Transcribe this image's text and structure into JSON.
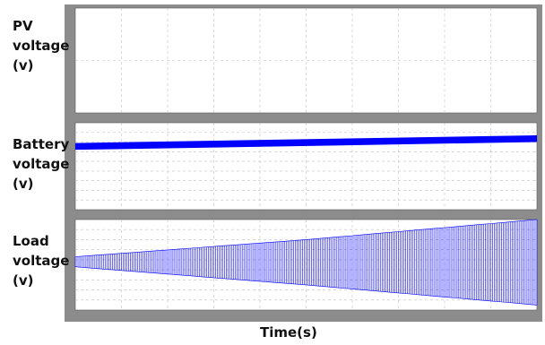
{
  "labels": {
    "pv": "PV\nvoltage\n(v)",
    "battery": "Battery\nvoltage\n(v)",
    "load": "Load\nvoltage\n(v)",
    "xlabel": "Time(s)"
  },
  "chart_data": [
    {
      "type": "line",
      "title": "",
      "ylabel": "PV voltage (v)",
      "xlabel": "Time(s)",
      "x_range": [
        0,
        1
      ],
      "grid": true,
      "series": []
    },
    {
      "type": "line",
      "title": "",
      "ylabel": "Battery voltage (v)",
      "xlabel": "Time(s)",
      "x_range": [
        0,
        1
      ],
      "ylim": [
        0,
        9
      ],
      "grid": true,
      "series": [
        {
          "x": [
            0,
            1
          ],
          "center": [
            6.55,
            7.35
          ],
          "band": 0.7,
          "color": "#0000ff"
        }
      ]
    },
    {
      "type": "line",
      "title": "",
      "ylabel": "Load voltage (v)",
      "xlabel": "Time(s)",
      "x_range": [
        0,
        1
      ],
      "ylim": [
        0,
        9
      ],
      "grid": true,
      "series": [
        {
          "x": [
            0,
            0.5,
            1
          ],
          "upper": [
            5.3,
            7.0,
            9.0
          ],
          "lower": [
            4.3,
            2.5,
            0.5
          ],
          "color": "#0000ff"
        }
      ]
    }
  ],
  "colors": {
    "frame": "#8c8c8c",
    "trace": "#0000ff",
    "grid": "#c0c0c0"
  }
}
